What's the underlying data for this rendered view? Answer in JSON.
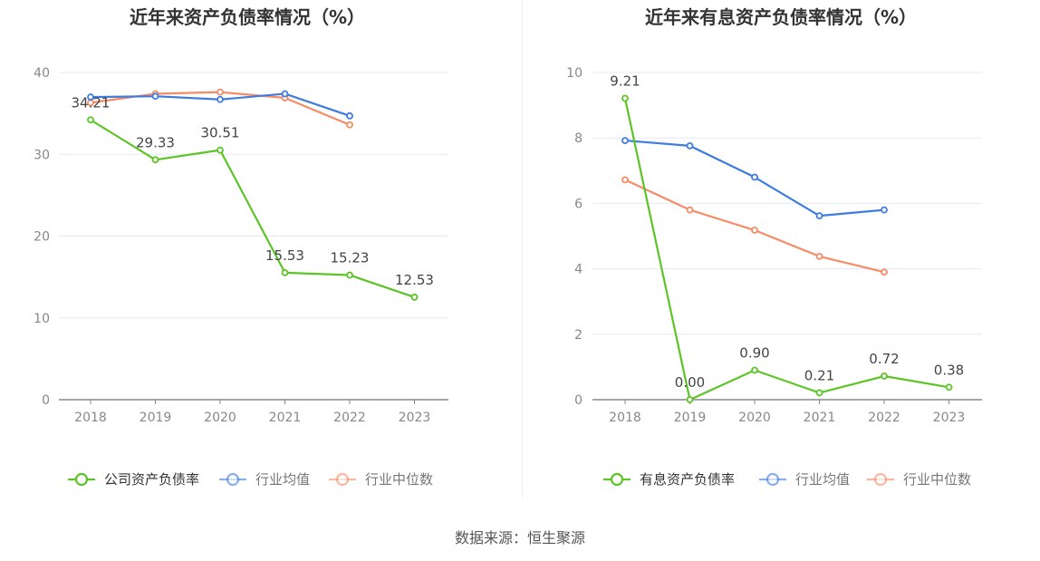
{
  "colors": {
    "company": "#5cc526",
    "average": "#3f7ce0",
    "median": "#f78b65",
    "grid": "#e4e9f2",
    "axis": "#888888",
    "tick_text": "#888888",
    "title": "#333333",
    "label": "#444444"
  },
  "source_text": "数据来源：恒生聚源",
  "chart_data": [
    {
      "type": "line",
      "title": "近年来资产负债率情况（%）",
      "categories": [
        "2018",
        "2019",
        "2020",
        "2021",
        "2022",
        "2023"
      ],
      "ylim": [
        0,
        40
      ],
      "yticks": [
        0,
        10,
        20,
        30,
        40
      ],
      "ytick_labels": [
        "0",
        "10",
        "20",
        "30",
        "40"
      ],
      "series": [
        {
          "key": "company",
          "name": "公司资产负债率",
          "values": [
            34.21,
            29.33,
            30.51,
            15.53,
            15.23,
            12.53
          ],
          "labels": [
            "34.21",
            "29.33",
            "30.51",
            "15.53",
            "15.23",
            "12.53"
          ]
        },
        {
          "key": "average",
          "name": "行业均值",
          "values": [
            37.0,
            37.1,
            36.7,
            37.4,
            34.7,
            null
          ]
        },
        {
          "key": "median",
          "name": "行业中位数",
          "values": [
            36.3,
            37.4,
            37.6,
            36.9,
            33.6,
            null
          ]
        }
      ]
    },
    {
      "type": "line",
      "title": "近年来有息资产负债率情况（%）",
      "categories": [
        "2018",
        "2019",
        "2020",
        "2021",
        "2022",
        "2023"
      ],
      "ylim": [
        0,
        10
      ],
      "yticks": [
        0,
        2,
        4,
        6,
        8,
        10
      ],
      "ytick_labels": [
        "0",
        "2",
        "4",
        "6",
        "8",
        "10"
      ],
      "series": [
        {
          "key": "company",
          "name": "有息资产负债率",
          "values": [
            9.21,
            0.0,
            0.9,
            0.21,
            0.72,
            0.38
          ],
          "labels": [
            "9.21",
            "0.00",
            "0.90",
            "0.21",
            "0.72",
            "0.38"
          ]
        },
        {
          "key": "average",
          "name": "行业均值",
          "values": [
            7.92,
            7.76,
            6.8,
            5.62,
            5.8,
            null
          ]
        },
        {
          "key": "median",
          "name": "行业中位数",
          "values": [
            6.72,
            5.8,
            5.18,
            4.38,
            3.9,
            null
          ]
        }
      ]
    }
  ]
}
